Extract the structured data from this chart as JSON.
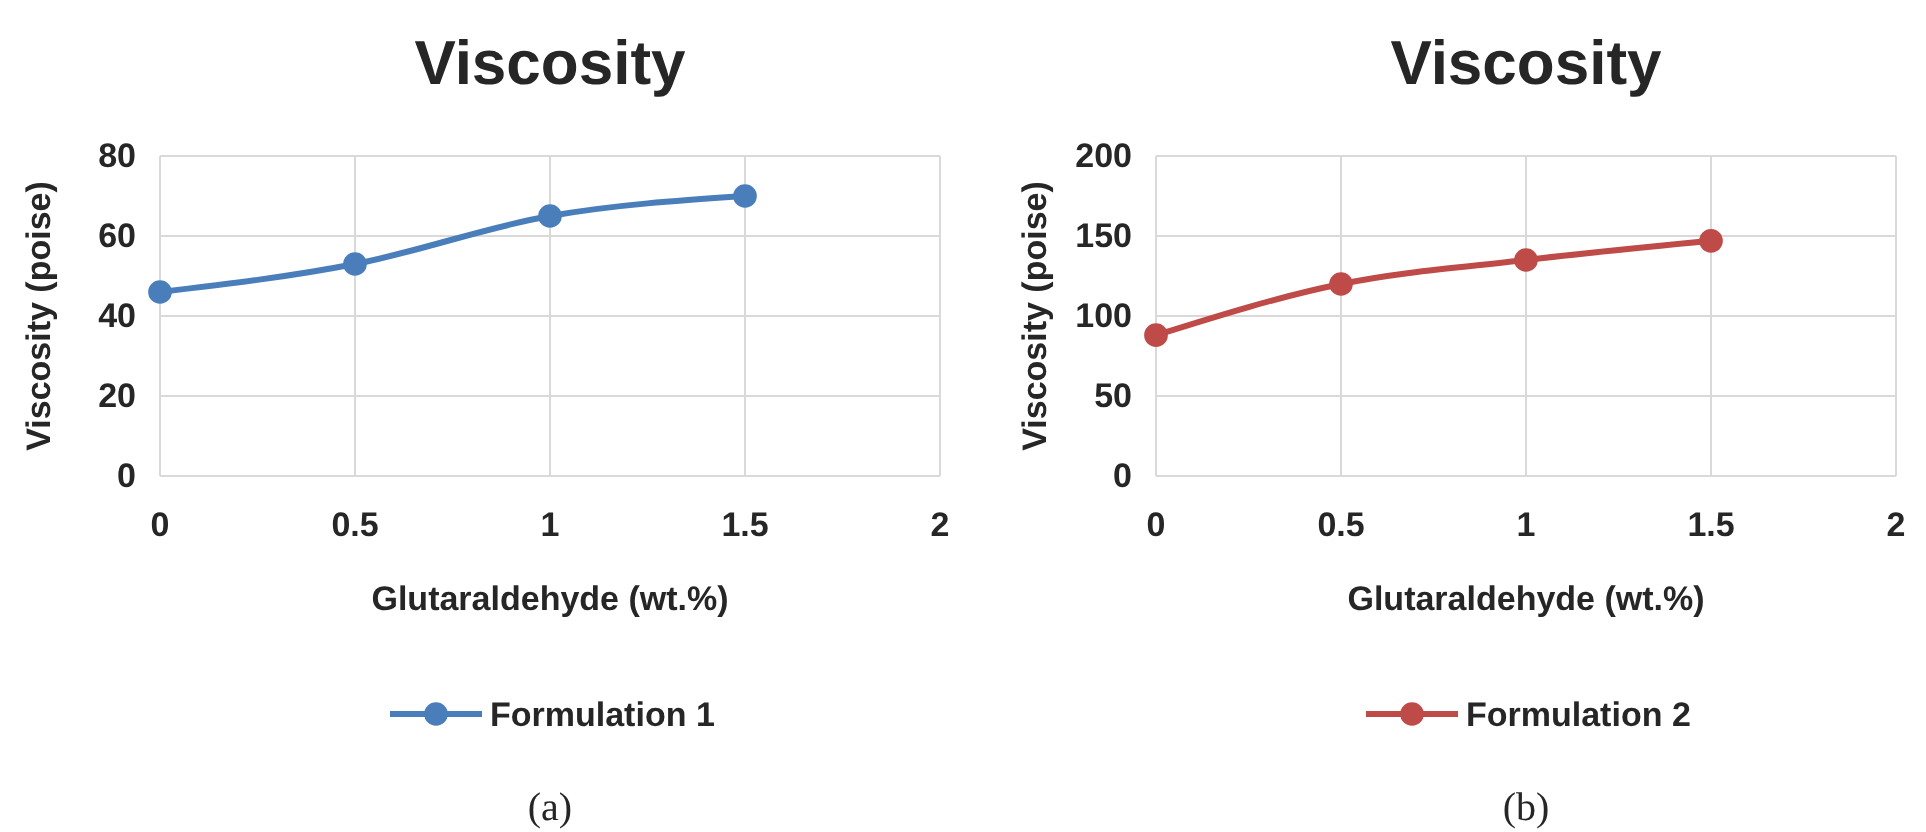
{
  "chart_data": [
    {
      "type": "line",
      "title": "Viscosity",
      "xlabel": "Glutaraldehyde (wt.%)",
      "ylabel": "Viscosity (poise)",
      "x": [
        0,
        0.5,
        1,
        1.5
      ],
      "series": [
        {
          "name": "Formulation 1",
          "color": "#4a7ebb",
          "values": [
            46,
            53,
            65,
            70
          ]
        }
      ],
      "xlim": [
        0,
        2
      ],
      "xticks": [
        0,
        0.5,
        1,
        1.5,
        2
      ],
      "ylim": [
        0,
        80
      ],
      "yticks": [
        0,
        20,
        40,
        60,
        80
      ],
      "grid": true,
      "legend": "bottom",
      "marker": "circle",
      "line_style": "solid",
      "annotations": [
        "(a)"
      ]
    },
    {
      "type": "line",
      "title": "Viscosity",
      "xlabel": "Glutaraldehyde (wt.%)",
      "ylabel": "Viscosity (poise)",
      "x": [
        0,
        0.5,
        1,
        1.5
      ],
      "series": [
        {
          "name": "Formulation 2",
          "color": "#be4b48",
          "values": [
            88,
            120,
            135,
            147
          ]
        }
      ],
      "xlim": [
        0,
        2
      ],
      "xticks": [
        0,
        0.5,
        1,
        1.5,
        2
      ],
      "ylim": [
        0,
        200
      ],
      "yticks": [
        0,
        50,
        100,
        150,
        200
      ],
      "grid": true,
      "legend": "bottom",
      "marker": "circle",
      "line_style": "solid",
      "annotations": [
        "(b)"
      ]
    }
  ]
}
